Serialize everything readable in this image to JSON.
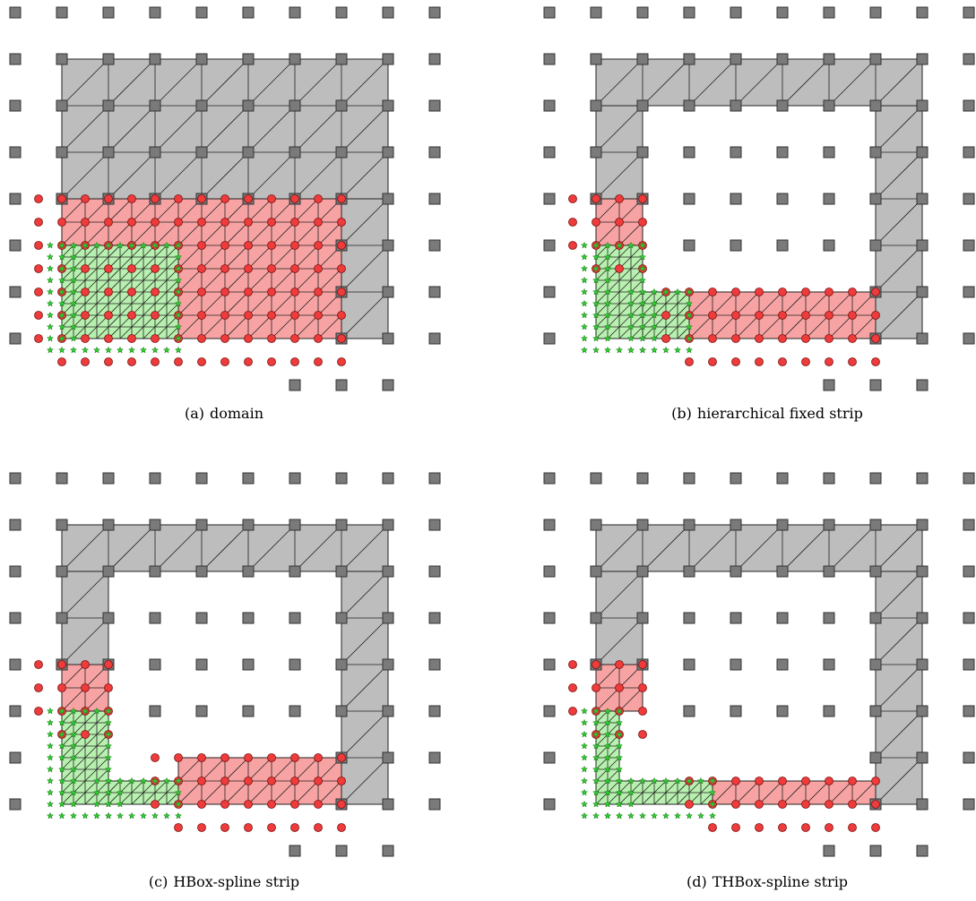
{
  "figure": {
    "panels": [
      {
        "id": "a",
        "label": "(a)",
        "caption": "domain",
        "gray_rects": [
          [
            1,
            1,
            8,
            4
          ],
          [
            7,
            4,
            8,
            7
          ]
        ],
        "red_rects": [
          [
            1,
            4,
            7,
            7
          ]
        ],
        "green_rects": [
          [
            1,
            5,
            3.5,
            7
          ]
        ],
        "open_square_rows": [
          [
            0,
            0,
            9
          ],
          [
            1,
            0,
            0
          ],
          [
            1,
            9,
            9
          ],
          [
            2,
            0,
            0
          ],
          [
            2,
            9,
            9
          ],
          [
            3,
            0,
            0
          ],
          [
            3,
            9,
            9
          ],
          [
            4,
            0,
            0
          ],
          [
            4,
            9,
            9
          ],
          [
            5,
            0,
            0
          ],
          [
            5,
            9,
            9
          ],
          [
            6,
            0,
            0
          ],
          [
            6,
            9,
            9
          ],
          [
            7,
            0,
            0
          ],
          [
            7,
            9,
            9
          ],
          [
            8,
            6,
            8
          ]
        ],
        "dots": [
          [
            1,
            4
          ],
          [
            2,
            4
          ],
          [
            3,
            4
          ],
          [
            4,
            4
          ],
          [
            5,
            4
          ],
          [
            6,
            4
          ],
          [
            1,
            5
          ],
          [
            2,
            5
          ],
          [
            3,
            5
          ],
          [
            4,
            5
          ],
          [
            5,
            5
          ],
          [
            6,
            5
          ],
          [
            4,
            6
          ],
          [
            5,
            6
          ],
          [
            6,
            6
          ],
          [
            4,
            7
          ],
          [
            5,
            7
          ],
          [
            6,
            7
          ]
        ],
        "stars_rows": [
          [
            5.5,
            0.8,
            3.2
          ]
        ]
      },
      {
        "id": "b",
        "label": "(b)",
        "caption": "hierarchical fixed strip",
        "gray_rects": [
          [
            1,
            1,
            8,
            2
          ],
          [
            1,
            2,
            2,
            4
          ],
          [
            7,
            2,
            8,
            7
          ]
        ],
        "red_rects": [
          [
            1,
            4,
            2,
            5
          ],
          [
            3,
            6,
            7,
            7
          ]
        ],
        "green_rects": [
          [
            1,
            5,
            2,
            7
          ],
          [
            2,
            6,
            3,
            7
          ]
        ],
        "open_square_rows": [
          [
            0,
            0,
            9
          ],
          [
            1,
            0,
            0
          ],
          [
            1,
            9,
            9
          ],
          [
            2,
            0,
            0
          ],
          [
            2,
            3,
            6
          ],
          [
            2,
            9,
            9
          ],
          [
            3,
            0,
            0
          ],
          [
            3,
            3,
            6
          ],
          [
            3,
            9,
            9
          ],
          [
            4,
            0,
            0
          ],
          [
            4,
            3,
            6
          ],
          [
            4,
            9,
            9
          ],
          [
            5,
            0,
            0
          ],
          [
            5,
            3,
            6
          ],
          [
            5,
            9,
            9
          ],
          [
            6,
            0,
            0
          ],
          [
            6,
            9,
            9
          ],
          [
            7,
            0,
            0
          ],
          [
            7,
            9,
            9
          ],
          [
            8,
            6,
            8
          ]
        ],
        "dots": [
          [
            1,
            4
          ],
          [
            2,
            4
          ],
          [
            3,
            6
          ],
          [
            4,
            6
          ],
          [
            5,
            6
          ],
          [
            6,
            6
          ],
          [
            3,
            7
          ],
          [
            4,
            7
          ],
          [
            5,
            7
          ],
          [
            6,
            7
          ]
        ],
        "stars_rows": []
      },
      {
        "id": "c",
        "label": "(c)",
        "caption": "HBox-spline strip",
        "gray_rects": [
          [
            1,
            1,
            8,
            2
          ],
          [
            1,
            2,
            2,
            4
          ],
          [
            7,
            2,
            8,
            7
          ]
        ],
        "red_rects": [
          [
            1,
            4,
            2,
            5
          ],
          [
            3.5,
            6,
            7,
            7
          ]
        ],
        "green_rects": [
          [
            1,
            5,
            2,
            7
          ],
          [
            2,
            6.5,
            3.5,
            7
          ]
        ],
        "open_square_rows": [
          [
            0,
            0,
            9
          ],
          [
            1,
            0,
            0
          ],
          [
            1,
            9,
            9
          ],
          [
            2,
            0,
            0
          ],
          [
            2,
            3,
            6
          ],
          [
            2,
            9,
            9
          ],
          [
            3,
            0,
            0
          ],
          [
            3,
            3,
            6
          ],
          [
            3,
            9,
            9
          ],
          [
            4,
            0,
            0
          ],
          [
            4,
            3,
            6
          ],
          [
            4,
            9,
            9
          ],
          [
            5,
            0,
            0
          ],
          [
            5,
            3,
            6
          ],
          [
            5,
            9,
            9
          ],
          [
            6,
            0,
            0
          ],
          [
            6,
            9,
            9
          ],
          [
            7,
            0,
            0
          ],
          [
            7,
            9,
            9
          ],
          [
            8,
            6,
            8
          ]
        ],
        "dots": [
          [
            1,
            4
          ],
          [
            2,
            4
          ],
          [
            4,
            6
          ],
          [
            5,
            6
          ],
          [
            6,
            6
          ],
          [
            4,
            7
          ],
          [
            5,
            7
          ],
          [
            6,
            7
          ]
        ],
        "stars_rows": []
      },
      {
        "id": "d",
        "label": "(d)",
        "caption": "THBox-spline strip",
        "gray_rects": [
          [
            1,
            1,
            8,
            2
          ],
          [
            1,
            2,
            2,
            4
          ],
          [
            7,
            2,
            8,
            7
          ]
        ],
        "red_rects": [
          [
            1,
            4,
            2,
            5
          ],
          [
            3.5,
            6.5,
            7,
            7
          ]
        ],
        "green_rects": [
          [
            1,
            5,
            1.5,
            7
          ],
          [
            1.5,
            6.5,
            3.5,
            7
          ]
        ],
        "open_square_rows": [
          [
            0,
            0,
            9
          ],
          [
            1,
            0,
            0
          ],
          [
            1,
            9,
            9
          ],
          [
            2,
            0,
            0
          ],
          [
            2,
            3,
            6
          ],
          [
            2,
            9,
            9
          ],
          [
            3,
            0,
            0
          ],
          [
            3,
            3,
            6
          ],
          [
            3,
            9,
            9
          ],
          [
            4,
            0,
            0
          ],
          [
            4,
            3,
            6
          ],
          [
            4,
            9,
            9
          ],
          [
            5,
            0,
            0
          ],
          [
            5,
            3,
            6
          ],
          [
            5,
            9,
            9
          ],
          [
            6,
            0,
            0
          ],
          [
            6,
            9,
            9
          ],
          [
            7,
            0,
            0
          ],
          [
            7,
            9,
            9
          ],
          [
            8,
            6,
            8
          ]
        ],
        "dots": [
          [
            1,
            4
          ],
          [
            2,
            4
          ],
          [
            5,
            6
          ],
          [
            6,
            6
          ],
          [
            5,
            7
          ],
          [
            6,
            7
          ]
        ],
        "stars_rows": []
      }
    ],
    "colors": {
      "gray_fill": "#bdbdbd",
      "red_fill": "#f7a3a3",
      "green_fill": "#b8f0b0",
      "square_fill": "#7a7a7a",
      "dot_fill": "#ee3b3b",
      "star_fill": "#33cc33",
      "stroke": "#222222"
    }
  }
}
